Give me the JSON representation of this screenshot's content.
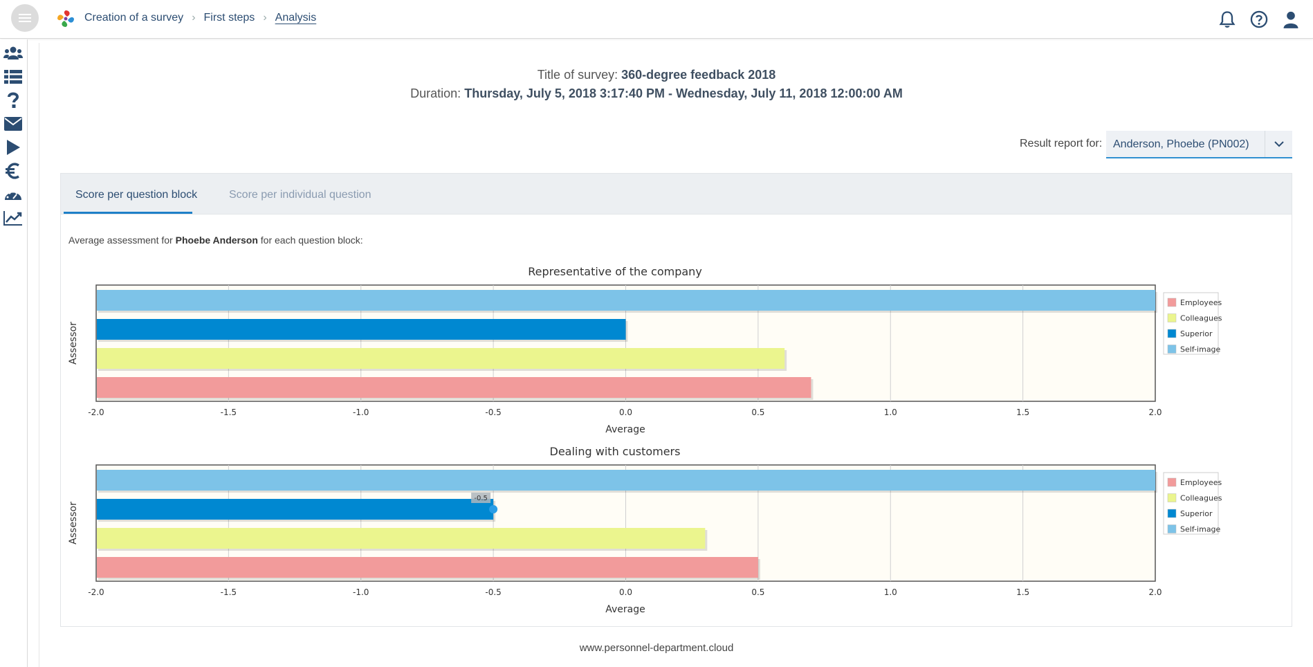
{
  "breadcrumb": [
    "Creation of a survey",
    "First steps",
    "Analysis"
  ],
  "survey": {
    "title_label": "Title of survey:",
    "title_value": "360-degree feedback 2018",
    "duration_label": "Duration:",
    "duration_value": "Thursday, July 5, 2018 3:17:40 PM - Wednesday, July 11, 2018 12:00:00 AM"
  },
  "report": {
    "label": "Result report for:",
    "selected": "Anderson, Phoebe (PN002)"
  },
  "tabs": [
    {
      "label": "Score per question block",
      "active": true
    },
    {
      "label": "Score per individual question",
      "active": false
    }
  ],
  "intro": {
    "prefix": "Average assessment for",
    "name": "Phoebe Anderson",
    "suffix": "for each question block:"
  },
  "colors": {
    "employees": "#f29b9b",
    "colleagues": "#ebf58e",
    "superior": "#0088d1",
    "self_image": "#7dc3e8",
    "accent": "#2c4d72"
  },
  "icons": {
    "top": [
      "bell-icon",
      "help-icon",
      "user-icon"
    ],
    "sidebar": [
      "users-icon",
      "list-icon",
      "question-icon",
      "envelope-icon",
      "play-icon",
      "euro-icon",
      "dashboard-icon",
      "chart-icon"
    ]
  },
  "chart_data": [
    {
      "type": "bar",
      "orientation": "horizontal",
      "title": "Representative of the company",
      "xlabel": "Average",
      "ylabel": "Assessor",
      "xlim": [
        -2.0,
        2.0
      ],
      "xticks": [
        "-2.0",
        "-1.5",
        "-1.0",
        "-0.5",
        "0.0",
        "0.5",
        "1.0",
        "1.5",
        "2.0"
      ],
      "legend_position": "right",
      "series": [
        {
          "name": "Employees",
          "value": 0.7,
          "color": "#f29b9b"
        },
        {
          "name": "Colleagues",
          "value": 0.6,
          "color": "#ebf58e"
        },
        {
          "name": "Superior",
          "value": 0.0,
          "color": "#0088d1"
        },
        {
          "name": "Self-image",
          "value": 2.0,
          "color": "#7dc3e8"
        }
      ]
    },
    {
      "type": "bar",
      "orientation": "horizontal",
      "title": "Dealing with customers",
      "xlabel": "Average",
      "ylabel": "Assessor",
      "xlim": [
        -2.0,
        2.0
      ],
      "xticks": [
        "-2.0",
        "-1.5",
        "-1.0",
        "-0.5",
        "0.0",
        "0.5",
        "1.0",
        "1.5",
        "2.0"
      ],
      "legend_position": "right",
      "tooltip": "-0.5",
      "series": [
        {
          "name": "Employees",
          "value": 0.5,
          "color": "#f29b9b"
        },
        {
          "name": "Colleagues",
          "value": 0.3,
          "color": "#ebf58e"
        },
        {
          "name": "Superior",
          "value": -0.5,
          "color": "#0088d1"
        },
        {
          "name": "Self-image",
          "value": 2.0,
          "color": "#7dc3e8"
        }
      ]
    }
  ],
  "footer": "www.personnel-department.cloud"
}
